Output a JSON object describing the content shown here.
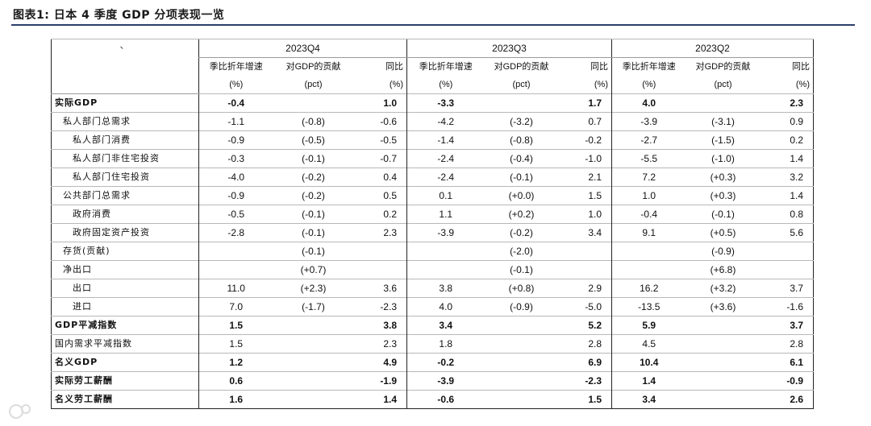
{
  "title": "图表1:  日本 4 季度 GDP 分项表现一览",
  "corner_mark": "、",
  "periods": [
    "2023Q4",
    "2023Q3",
    "2023Q2"
  ],
  "subheaders": {
    "col1": [
      "季比折年增速",
      "(%)"
    ],
    "col2": [
      "对GDP的贡献",
      "(pct)"
    ],
    "col3": [
      "同比",
      "(%)"
    ]
  },
  "rows": [
    {
      "label": "实际GDP",
      "level": 0,
      "bold": true,
      "vals": [
        "-0.4",
        "",
        "1.0",
        "-3.3",
        "",
        "1.7",
        "4.0",
        "",
        "2.3"
      ]
    },
    {
      "label": "私人部门总需求",
      "level": 1,
      "bold": false,
      "vals": [
        "-1.1",
        "(-0.8)",
        "-0.6",
        "-4.2",
        "(-3.2)",
        "0.7",
        "-3.9",
        "(-3.1)",
        "0.9"
      ]
    },
    {
      "label": "私人部门消费",
      "level": 2,
      "bold": false,
      "vals": [
        "-0.9",
        "(-0.5)",
        "-0.5",
        "-1.4",
        "(-0.8)",
        "-0.2",
        "-2.7",
        "(-1.5)",
        "0.2"
      ]
    },
    {
      "label": "私人部门非住宅投资",
      "level": 2,
      "bold": false,
      "vals": [
        "-0.3",
        "(-0.1)",
        "-0.7",
        "-2.4",
        "(-0.4)",
        "-1.0",
        "-5.5",
        "(-1.0)",
        "1.4"
      ]
    },
    {
      "label": "私人部门住宅投资",
      "level": 2,
      "bold": false,
      "vals": [
        "-4.0",
        "(-0.2)",
        "0.4",
        "-2.4",
        "(-0.1)",
        "2.1",
        "7.2",
        "(+0.3)",
        "3.2"
      ]
    },
    {
      "label": "公共部门总需求",
      "level": 1,
      "bold": false,
      "vals": [
        "-0.9",
        "(-0.2)",
        "0.5",
        "0.1",
        "(+0.0)",
        "1.5",
        "1.0",
        "(+0.3)",
        "1.4"
      ]
    },
    {
      "label": "政府消费",
      "level": 2,
      "bold": false,
      "vals": [
        "-0.5",
        "(-0.1)",
        "0.2",
        "1.1",
        "(+0.2)",
        "1.0",
        "-0.4",
        "(-0.1)",
        "0.8"
      ]
    },
    {
      "label": "政府固定资产投资",
      "level": 2,
      "bold": false,
      "vals": [
        "-2.8",
        "(-0.1)",
        "2.3",
        "-3.9",
        "(-0.2)",
        "3.4",
        "9.1",
        "(+0.5)",
        "5.6"
      ]
    },
    {
      "label": "存货(贡献)",
      "level": 1,
      "bold": false,
      "vals": [
        "",
        "(-0.1)",
        "",
        "",
        "(-2.0)",
        "",
        "",
        "(-0.9)",
        ""
      ]
    },
    {
      "label": "净出口",
      "level": 1,
      "bold": false,
      "vals": [
        "",
        "(+0.7)",
        "",
        "",
        "(-0.1)",
        "",
        "",
        "(+6.8)",
        ""
      ]
    },
    {
      "label": "出口",
      "level": 2,
      "bold": false,
      "vals": [
        "11.0",
        "(+2.3)",
        "3.6",
        "3.8",
        "(+0.8)",
        "2.9",
        "16.2",
        "(+3.2)",
        "3.7"
      ]
    },
    {
      "label": "进口",
      "level": 2,
      "bold": false,
      "vals": [
        "7.0",
        "(-1.7)",
        "-2.3",
        "4.0",
        "(-0.9)",
        "-5.0",
        "-13.5",
        "(+3.6)",
        "-1.6"
      ]
    },
    {
      "label": "GDP平减指数",
      "level": 0,
      "bold": true,
      "thick": true,
      "vals": [
        "1.5",
        "",
        "3.8",
        "3.4",
        "",
        "5.2",
        "5.9",
        "",
        "3.7"
      ]
    },
    {
      "label": "国内需求平减指数",
      "level": 0,
      "bold": false,
      "vals": [
        "1.5",
        "",
        "2.3",
        "1.8",
        "",
        "2.8",
        "4.5",
        "",
        "2.8"
      ]
    },
    {
      "label": "名义GDP",
      "level": 0,
      "bold": true,
      "vals": [
        "1.2",
        "",
        "4.9",
        "-0.2",
        "",
        "6.9",
        "10.4",
        "",
        "6.1"
      ]
    },
    {
      "label": "实际劳工薪酬",
      "level": 0,
      "bold": true,
      "thick": true,
      "vals": [
        "0.6",
        "",
        "-1.9",
        "-3.9",
        "",
        "-2.3",
        "1.4",
        "",
        "-0.9"
      ]
    },
    {
      "label": "名义劳工薪酬",
      "level": 0,
      "bold": true,
      "vals": [
        "1.6",
        "",
        "1.4",
        "-0.6",
        "",
        "1.5",
        "3.4",
        "",
        "2.6"
      ]
    }
  ]
}
